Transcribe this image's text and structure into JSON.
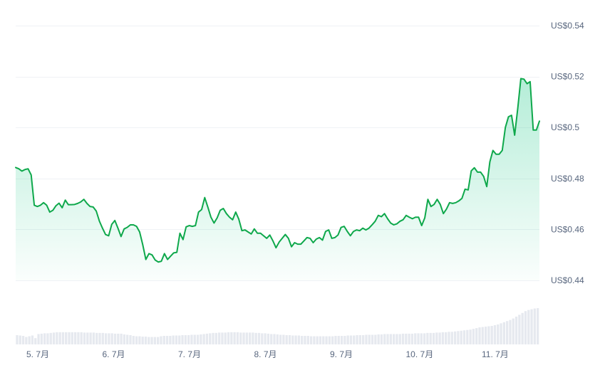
{
  "chart_data": {
    "type": "area",
    "title": "",
    "xlabel": "",
    "ylabel": "",
    "ylim": [
      0.44,
      0.54
    ],
    "y_ticks": [
      "US$0.54",
      "US$0.52",
      "US$0.5",
      "US$0.48",
      "US$0.46",
      "US$0.44"
    ],
    "y_tick_values": [
      0.54,
      0.52,
      0.5,
      0.48,
      0.46,
      0.44
    ],
    "x_ticks": [
      "5. 7月",
      "6. 7月",
      "7. 7月",
      "8. 7月",
      "9. 7月",
      "10. 7月",
      "11. 7月"
    ],
    "grid": true,
    "colors": {
      "line": "#16c784",
      "stroke": "#0ea84b",
      "fill_top": "#16c784",
      "volume": "#e6e9ef",
      "grid": "#eff2f5"
    },
    "series": [
      {
        "values": [
          0.4843,
          0.4838,
          0.4829,
          0.4835,
          0.4838,
          0.4814,
          0.4695,
          0.469,
          0.4695,
          0.4705,
          0.4695,
          0.4668,
          0.4675,
          0.4693,
          0.4703,
          0.4685,
          0.4715,
          0.4697,
          0.4697,
          0.4698,
          0.4702,
          0.4708,
          0.4718,
          0.4702,
          0.469,
          0.4688,
          0.4672,
          0.4633,
          0.4605,
          0.458,
          0.4575,
          0.462,
          0.4635,
          0.4605,
          0.4572,
          0.4602,
          0.4608,
          0.4618,
          0.4618,
          0.4612,
          0.459,
          0.454,
          0.4482,
          0.4505,
          0.45,
          0.448,
          0.4472,
          0.4475,
          0.4505,
          0.4482,
          0.4495,
          0.4508,
          0.451,
          0.4585,
          0.456,
          0.461,
          0.4615,
          0.4612,
          0.4615,
          0.4668,
          0.4678,
          0.4725,
          0.4688,
          0.4648,
          0.4625,
          0.4645,
          0.4675,
          0.4682,
          0.4662,
          0.4648,
          0.4638,
          0.4668,
          0.464,
          0.4595,
          0.4598,
          0.459,
          0.4582,
          0.4602,
          0.4585,
          0.4585,
          0.4575,
          0.4565,
          0.4578,
          0.4555,
          0.4528,
          0.455,
          0.4565,
          0.458,
          0.4565,
          0.4532,
          0.4548,
          0.4542,
          0.4542,
          0.4555,
          0.4568,
          0.4565,
          0.4548,
          0.4562,
          0.4568,
          0.4558,
          0.4592,
          0.4598,
          0.4565,
          0.4568,
          0.4578,
          0.4608,
          0.4612,
          0.4592,
          0.4575,
          0.4592,
          0.4598,
          0.4595,
          0.4605,
          0.4598,
          0.4605,
          0.4618,
          0.4632,
          0.4655,
          0.465,
          0.4662,
          0.4642,
          0.4625,
          0.4618,
          0.4622,
          0.4632,
          0.4638,
          0.4655,
          0.4648,
          0.4642,
          0.4648,
          0.4648,
          0.4615,
          0.4645,
          0.4718,
          0.469,
          0.4698,
          0.4718,
          0.4698,
          0.4662,
          0.468,
          0.4705,
          0.4702,
          0.4705,
          0.4712,
          0.4722,
          0.4758,
          0.4755,
          0.483,
          0.4842,
          0.4825,
          0.4825,
          0.4808,
          0.4768,
          0.4865,
          0.491,
          0.4895,
          0.4895,
          0.491,
          0.5,
          0.5042,
          0.5048,
          0.497,
          0.5075,
          0.5192,
          0.519,
          0.5172,
          0.518,
          0.499,
          0.499,
          0.5025
        ]
      }
    ],
    "volume": [
      0.25,
      0.24,
      0.23,
      0.2,
      0.22,
      0.24,
      0.17,
      0.28,
      0.29,
      0.3,
      0.3,
      0.31,
      0.32,
      0.33,
      0.33,
      0.33,
      0.33,
      0.33,
      0.33,
      0.33,
      0.33,
      0.33,
      0.32,
      0.32,
      0.32,
      0.32,
      0.31,
      0.31,
      0.31,
      0.3,
      0.3,
      0.3,
      0.29,
      0.29,
      0.29,
      0.27,
      0.26,
      0.25,
      0.23,
      0.22,
      0.22,
      0.21,
      0.21,
      0.2,
      0.2,
      0.2,
      0.2,
      0.22,
      0.23,
      0.23,
      0.23,
      0.24,
      0.24,
      0.24,
      0.25,
      0.25,
      0.25,
      0.26,
      0.26,
      0.26,
      0.27,
      0.28,
      0.29,
      0.3,
      0.31,
      0.31,
      0.32,
      0.32,
      0.32,
      0.33,
      0.33,
      0.33,
      0.33,
      0.32,
      0.32,
      0.32,
      0.32,
      0.32,
      0.31,
      0.31,
      0.3,
      0.3,
      0.29,
      0.28,
      0.28,
      0.27,
      0.26,
      0.26,
      0.25,
      0.25,
      0.24,
      0.24,
      0.24,
      0.23,
      0.23,
      0.23,
      0.22,
      0.22,
      0.22,
      0.22,
      0.22,
      0.22,
      0.22,
      0.22,
      0.23,
      0.23,
      0.23,
      0.23,
      0.24,
      0.24,
      0.24,
      0.25,
      0.25,
      0.25,
      0.26,
      0.26,
      0.26,
      0.26,
      0.27,
      0.27,
      0.28,
      0.28,
      0.28,
      0.28,
      0.28,
      0.28,
      0.29,
      0.29,
      0.29,
      0.29,
      0.3,
      0.3,
      0.3,
      0.3,
      0.31,
      0.31,
      0.31,
      0.32,
      0.32,
      0.33,
      0.33,
      0.34,
      0.34,
      0.35,
      0.36,
      0.37,
      0.38,
      0.39,
      0.4,
      0.42,
      0.44,
      0.46,
      0.47,
      0.48,
      0.49,
      0.5,
      0.52,
      0.54,
      0.57,
      0.6,
      0.63,
      0.66,
      0.7,
      0.75,
      0.8,
      0.85,
      0.9,
      0.93,
      0.95,
      0.97,
      0.98
    ]
  }
}
